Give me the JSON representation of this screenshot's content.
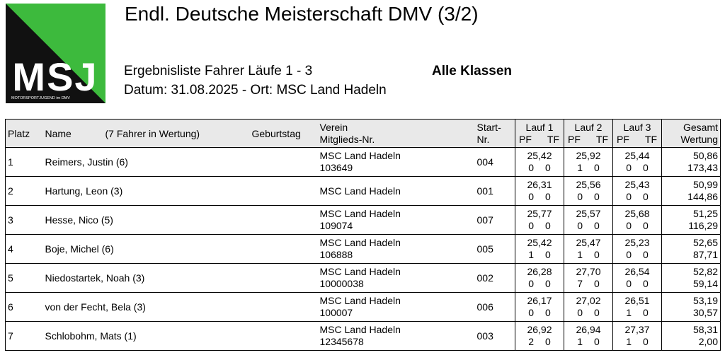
{
  "logo": {
    "letters": "MSJ",
    "tagline": "MOTORSPORTJUGEND im DMV",
    "colors": {
      "green": "#3dba3d",
      "black": "#111111"
    }
  },
  "header": {
    "title": "Endl. Deutsche Meisterschaft DMV (3/2)",
    "subtitle": "Ergebnisliste Fahrer Läufe 1 - 3",
    "classes": "Alle Klassen",
    "date_place": "Datum: 31.08.2025 - Ort: MSC Land Hadeln"
  },
  "table": {
    "headers": {
      "platz": "Platz",
      "name": "Name",
      "wertung_count": "(7 Fahrer in Wertung)",
      "geburtstag": "Geburtstag",
      "verein": "Verein",
      "mitglied": "Mitglieds-Nr.",
      "start1": "Start-",
      "start2": "Nr.",
      "lauf1": "Lauf 1",
      "lauf2": "Lauf 2",
      "lauf3": "Lauf 3",
      "pf": "PF",
      "tf": "TF",
      "gesamt": "Gesamt",
      "wertung": "Wertung"
    },
    "rows": [
      {
        "platz": "1",
        "name": "Reimers, Justin (6)",
        "verein": "MSC Land Hadeln",
        "mitglied": "103649",
        "start": "004",
        "l1": "25,42",
        "l1pf": "0",
        "l1tf": "0",
        "l2": "25,92",
        "l2pf": "1",
        "l2tf": "0",
        "l3": "25,44",
        "l3pf": "0",
        "l3tf": "0",
        "gesamt": "50,86",
        "wertung": "173,43"
      },
      {
        "platz": "2",
        "name": "Hartung, Leon (3)",
        "verein": "MSC Land Hadeln",
        "mitglied": "",
        "start": "001",
        "l1": "26,31",
        "l1pf": "0",
        "l1tf": "0",
        "l2": "25,56",
        "l2pf": "0",
        "l2tf": "0",
        "l3": "25,43",
        "l3pf": "0",
        "l3tf": "0",
        "gesamt": "50,99",
        "wertung": "144,86"
      },
      {
        "platz": "3",
        "name": "Hesse, Nico (5)",
        "verein": "MSC Land Hadeln",
        "mitglied": "109074",
        "start": "007",
        "l1": "25,77",
        "l1pf": "0",
        "l1tf": "0",
        "l2": "25,57",
        "l2pf": "0",
        "l2tf": "0",
        "l3": "25,68",
        "l3pf": "0",
        "l3tf": "0",
        "gesamt": "51,25",
        "wertung": "116,29"
      },
      {
        "platz": "4",
        "name": "Boje, Michel (6)",
        "verein": "MSC Land Hadeln",
        "mitglied": "106888",
        "start": "005",
        "l1": "25,42",
        "l1pf": "1",
        "l1tf": "0",
        "l2": "25,47",
        "l2pf": "1",
        "l2tf": "0",
        "l3": "25,23",
        "l3pf": "0",
        "l3tf": "0",
        "gesamt": "52,65",
        "wertung": "87,71"
      },
      {
        "platz": "5",
        "name": "Niedostartek, Noah (3)",
        "verein": "MSC Land Hadeln",
        "mitglied": "10000038",
        "start": "002",
        "l1": "26,28",
        "l1pf": "0",
        "l1tf": "0",
        "l2": "27,70",
        "l2pf": "7",
        "l2tf": "0",
        "l3": "26,54",
        "l3pf": "0",
        "l3tf": "0",
        "gesamt": "52,82",
        "wertung": "59,14"
      },
      {
        "platz": "6",
        "name": "von der Fecht, Bela (3)",
        "verein": "MSC Land Hadeln",
        "mitglied": "100007",
        "start": "006",
        "l1": "26,17",
        "l1pf": "0",
        "l1tf": "0",
        "l2": "27,02",
        "l2pf": "0",
        "l2tf": "0",
        "l3": "26,51",
        "l3pf": "1",
        "l3tf": "0",
        "gesamt": "53,19",
        "wertung": "30,57"
      },
      {
        "platz": "7",
        "name": "Schlobohm, Mats (1)",
        "verein": "MSC Land Hadeln",
        "mitglied": "12345678",
        "start": "003",
        "l1": "26,92",
        "l1pf": "2",
        "l1tf": "0",
        "l2": "26,94",
        "l2pf": "1",
        "l2tf": "0",
        "l3": "27,37",
        "l3pf": "1",
        "l3tf": "0",
        "gesamt": "58,31",
        "wertung": "2,00"
      }
    ]
  }
}
